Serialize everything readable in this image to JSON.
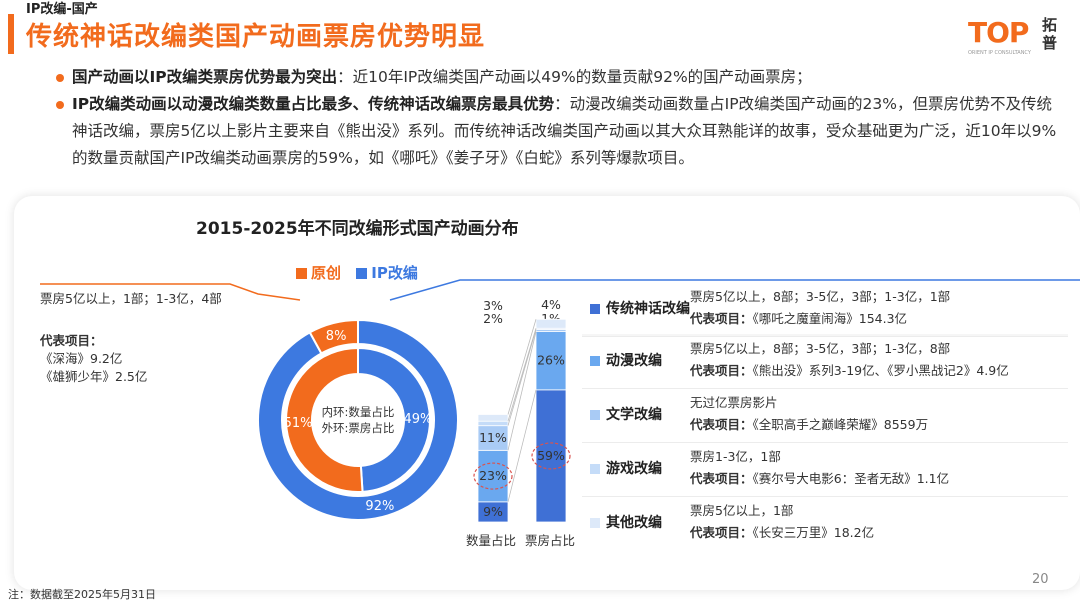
{
  "header": {
    "kicker": "IP改编-国产",
    "headline": "传统神话改编类国产动画票房优势明显"
  },
  "logo": {
    "top": "TOP",
    "sub": "ORIENT IP CONSULTANCY",
    "cn": "拓普"
  },
  "bullets": [
    {
      "bold": "国产动画以IP改编类票房优势最为突出",
      "text": "：近10年IP改编类国产动画以49%的数量贡献92%的国产动画票房；"
    },
    {
      "bold": "IP改编类动画以动漫改编类数量占比最多、传统神话改编票房最具优势",
      "text": "：动漫改编类动画数量占IP改编类国产动画的23%，但票房优势不及传统神话改编，票房5亿以上影片主要来自《熊出没》系列。而传统神话改编类国产动画以其大众耳熟能详的故事，受众基础更为广泛，近10年以9%的数量贡献国产IP改编类动画票房的59%，如《哪吒》《姜子牙》《白蛇》系列等爆款项目。"
    }
  ],
  "chart_data": [
    {
      "type": "pie",
      "title": "2015-2025年不同改编形式国产动画分布",
      "legend": [
        "原创",
        "IP改编"
      ],
      "colors": {
        "原创": "#f26b1d",
        "IP改编": "#3d79e0"
      },
      "center_text": [
        "内环:数量占比",
        "外环:票房占比"
      ],
      "inner_ring": {
        "name": "数量占比",
        "labels": [
          "原创",
          "IP改编"
        ],
        "values": [
          51,
          49
        ],
        "display": [
          "51%",
          "49%"
        ]
      },
      "outer_ring": {
        "name": "票房占比",
        "labels": [
          "原创",
          "IP改编"
        ],
        "values": [
          8,
          92
        ],
        "display": [
          "8%",
          "92%"
        ]
      }
    },
    {
      "type": "bar",
      "stacked": true,
      "normalized": true,
      "categories": [
        "数量占比",
        "票房占比"
      ],
      "series": [
        {
          "name": "传统神话改编",
          "values": [
            9,
            59
          ],
          "display": [
            "9%",
            "59%"
          ],
          "color": "#3f70d5",
          "highlight": [
            false,
            true
          ]
        },
        {
          "name": "动漫改编",
          "values": [
            23,
            26
          ],
          "display": [
            "23%",
            "26%"
          ],
          "color": "#6aa8ef",
          "highlight": [
            true,
            false
          ]
        },
        {
          "name": "文学改编",
          "values": [
            11,
            1
          ],
          "display": [
            "11%",
            "1%"
          ],
          "color": "#a9cbf5"
        },
        {
          "name": "游戏改编",
          "values": [
            2,
            0.5
          ],
          "display": [
            "2%",
            ""
          ],
          "color": "#c5dcf8"
        },
        {
          "name": "其他改编",
          "values": [
            3,
            4
          ],
          "display": [
            "3%",
            "4%"
          ],
          "color": "#dde9f9"
        }
      ],
      "ylim": [
        0,
        100
      ]
    }
  ],
  "original": {
    "line1": "票房5亿以上，1部；1-3亿，4部",
    "rep_label": "代表项目：",
    "reps": [
      "《深海》9.2亿",
      "《雄狮少年》2.5亿"
    ]
  },
  "categories_info": [
    {
      "name": "传统神话改编",
      "color": "#3f70d5",
      "line1": "票房5亿以上，8部；3-5亿，3部；1-3亿，1部",
      "rep_label": "代表项目：",
      "rep": "《哪吒之魔童闹海》154.3亿"
    },
    {
      "name": "动漫改编",
      "color": "#6aa8ef",
      "line1": "票房5亿以上，8部；3-5亿，3部；1-3亿，8部",
      "rep_label": "代表项目：",
      "rep": "《熊出没》系列3-19亿、《罗小黑战记2》4.9亿"
    },
    {
      "name": "文学改编",
      "color": "#a9cbf5",
      "line1": "无过亿票房影片",
      "rep_label": "代表项目：",
      "rep": "《全职高手之巅峰荣耀》8559万"
    },
    {
      "name": "游戏改编",
      "color": "#c5dcf8",
      "line1": "票房1-3亿，1部",
      "rep_label": "代表项目：",
      "rep": "《赛尔号大电影6：圣者无敌》1.1亿"
    },
    {
      "name": "其他改编",
      "color": "#dde9f9",
      "line1": "票房5亿以上，1部",
      "rep_label": "代表项目：",
      "rep": "《长安三万里》18.2亿"
    }
  ],
  "footnote": "注：数据截至2025年5月31日",
  "page_number": "20"
}
